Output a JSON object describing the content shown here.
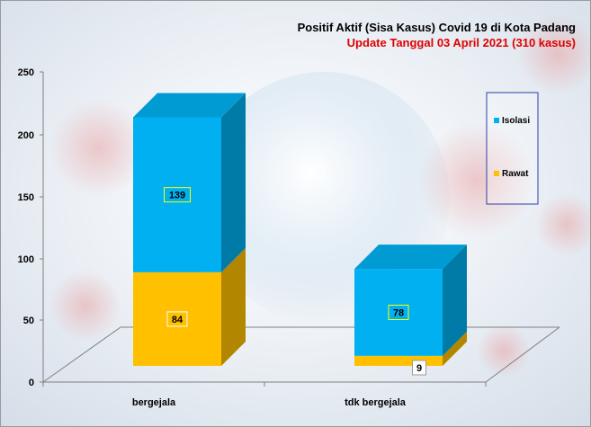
{
  "title": "Positif Aktif  (Sisa Kasus) Covid 19 di Kota Padang",
  "subtitle": "Update Tanggal 03 April 2021  (310 kasus)",
  "colors": {
    "isolasi": "#00b0f0",
    "rawat": "#ffc000",
    "title": "#000000",
    "subtitle": "#e00000",
    "frame": "#7f7f7f",
    "legend_border": "#2f3ea8"
  },
  "chart_data": {
    "type": "bar",
    "stacked": true,
    "categories": [
      "bergejala",
      "tdk bergejala"
    ],
    "series": [
      {
        "name": "Rawat",
        "values": [
          84,
          9
        ]
      },
      {
        "name": "Isolasi",
        "values": [
          139,
          78
        ]
      }
    ],
    "ylim": [
      0,
      250
    ],
    "yticks": [
      "0",
      "50",
      "100",
      "150",
      "200",
      "250"
    ],
    "legend": {
      "placement": "right",
      "order": [
        "Isolasi",
        "Rawat"
      ]
    },
    "grid": false
  }
}
